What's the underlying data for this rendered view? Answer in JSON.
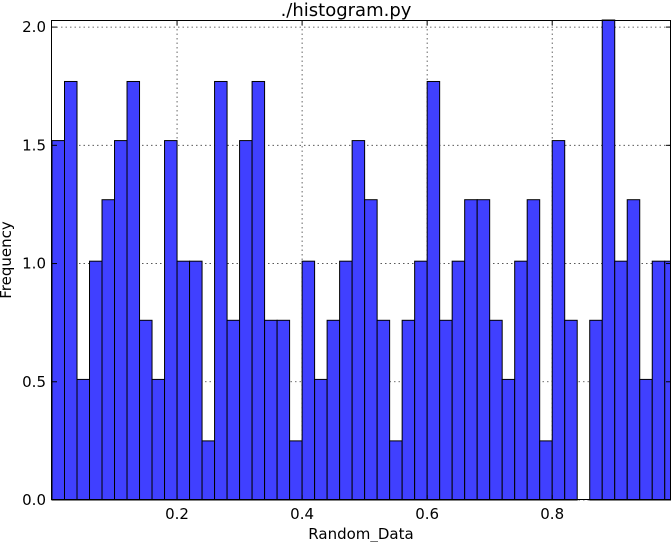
{
  "chart_data": {
    "type": "bar",
    "title": "./histogram.py",
    "xlabel": "Random_Data",
    "ylabel": "Frequency",
    "xlim": [
      0.0,
      0.99
    ],
    "ylim": [
      0.0,
      2.0
    ],
    "bin_start": 0.0,
    "bin_width": 0.02,
    "values": [
      1.52,
      1.77,
      0.51,
      1.01,
      1.27,
      1.52,
      1.77,
      0.76,
      0.51,
      1.52,
      1.01,
      1.01,
      0.25,
      1.77,
      0.76,
      1.52,
      1.77,
      0.76,
      0.76,
      0.25,
      1.01,
      0.51,
      0.76,
      1.01,
      1.52,
      1.27,
      0.76,
      0.25,
      0.76,
      1.01,
      1.77,
      0.76,
      1.01,
      1.27,
      1.27,
      0.76,
      0.51,
      1.01,
      1.27,
      0.25,
      1.52,
      0.76,
      0.0,
      0.76,
      2.03,
      1.01,
      1.27,
      0.51,
      1.01,
      1.01
    ],
    "x_ticks": [
      {
        "value": 0.2,
        "label": "0.2"
      },
      {
        "value": 0.4,
        "label": "0.4"
      },
      {
        "value": 0.6,
        "label": "0.6"
      },
      {
        "value": 0.8,
        "label": "0.8"
      }
    ],
    "y_ticks": [
      {
        "value": 0.0,
        "label": "0.0"
      },
      {
        "value": 0.5,
        "label": "0.5"
      },
      {
        "value": 1.0,
        "label": "1.0"
      },
      {
        "value": 1.5,
        "label": "1.5"
      },
      {
        "value": 2.0,
        "label": "2.0"
      }
    ],
    "grid": true,
    "legend": "none",
    "colors": {
      "bar_fill": "#4040ff",
      "bar_edge": "#000000",
      "background": "#ffffff"
    }
  }
}
